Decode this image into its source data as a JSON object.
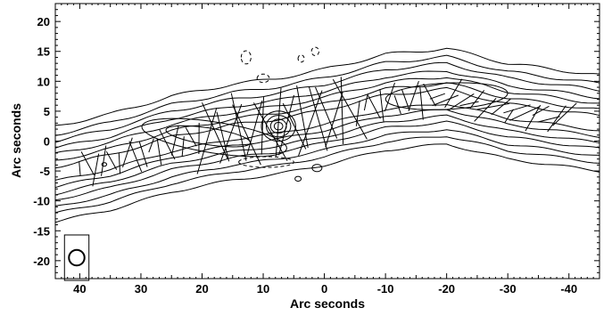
{
  "chart_data": {
    "type": "contour",
    "xlabel": "Arc seconds",
    "ylabel": "Arc seconds",
    "xlim": [
      44,
      -45
    ],
    "ylim": [
      -23,
      23
    ],
    "x_ticks": [
      40,
      30,
      20,
      10,
      0,
      -10,
      -20,
      -30,
      -40
    ],
    "x_tick_labels": [
      "40",
      "30",
      "20",
      "10",
      "0",
      "-10",
      "-20",
      "-30",
      "-40"
    ],
    "y_ticks": [
      20,
      15,
      10,
      5,
      0,
      -5,
      -10,
      -15,
      -20
    ],
    "y_tick_labels": [
      "20",
      "15",
      "10",
      "5",
      "0",
      "-5",
      "-10",
      "-15",
      "-20"
    ],
    "core": {
      "x": 7.5,
      "y": 2.5
    },
    "beam": {
      "x": 40.5,
      "y": -19.5,
      "radius": 1.3
    },
    "jet_ridge": [
      {
        "x": 44,
        "y": -5.5
      },
      {
        "x": 35,
        "y": -3.5
      },
      {
        "x": 25,
        "y": -0.5
      },
      {
        "x": 15,
        "y": 1.5
      },
      {
        "x": 7.5,
        "y": 2.5
      },
      {
        "x": 0,
        "y": 4
      },
      {
        "x": -10,
        "y": 6.5
      },
      {
        "x": -20,
        "y": 7.5
      },
      {
        "x": -30,
        "y": 5
      },
      {
        "x": -45,
        "y": 3
      }
    ],
    "contour_half_widths": [
      1.2,
      2.2,
      3.3,
      4.3,
      5.5,
      6.6,
      8
    ],
    "inner_contours": [
      {
        "cx": 19,
        "cy": 0.8,
        "rx": 7,
        "ry": 1.4,
        "angle": 9
      },
      {
        "cx": 18,
        "cy": 0.6,
        "rx": 12,
        "ry": 2.6,
        "angle": 9
      },
      {
        "cx": -20,
        "cy": 7.5,
        "rx": 10,
        "ry": 2.2,
        "angle": -3
      },
      {
        "cx": 36,
        "cy": -3.9,
        "rx": 0.4,
        "ry": 0.3,
        "angle": 0
      }
    ],
    "core_contours": [
      0.7,
      1.3,
      2.0,
      2.8
    ],
    "negative_contours": [
      {
        "cx": 12.8,
        "cy": 14,
        "rx": 0.8,
        "ry": 1.1
      },
      {
        "cx": 3.8,
        "cy": 13.8,
        "rx": 0.5,
        "ry": 0.6
      },
      {
        "cx": 1.5,
        "cy": 15,
        "rx": 0.6,
        "ry": 0.7
      },
      {
        "cx": 10,
        "cy": 10.5,
        "rx": 1,
        "ry": 0.7
      },
      {
        "cx": 9.5,
        "cy": -3.5,
        "rx": 4.5,
        "ry": 0.9
      }
    ],
    "isolated_contours": [
      {
        "cx": 1.2,
        "cy": -4.5,
        "rx": 0.8,
        "ry": 0.6
      },
      {
        "cx": 4.3,
        "cy": -6.3,
        "rx": 0.5,
        "ry": 0.4
      }
    ]
  }
}
